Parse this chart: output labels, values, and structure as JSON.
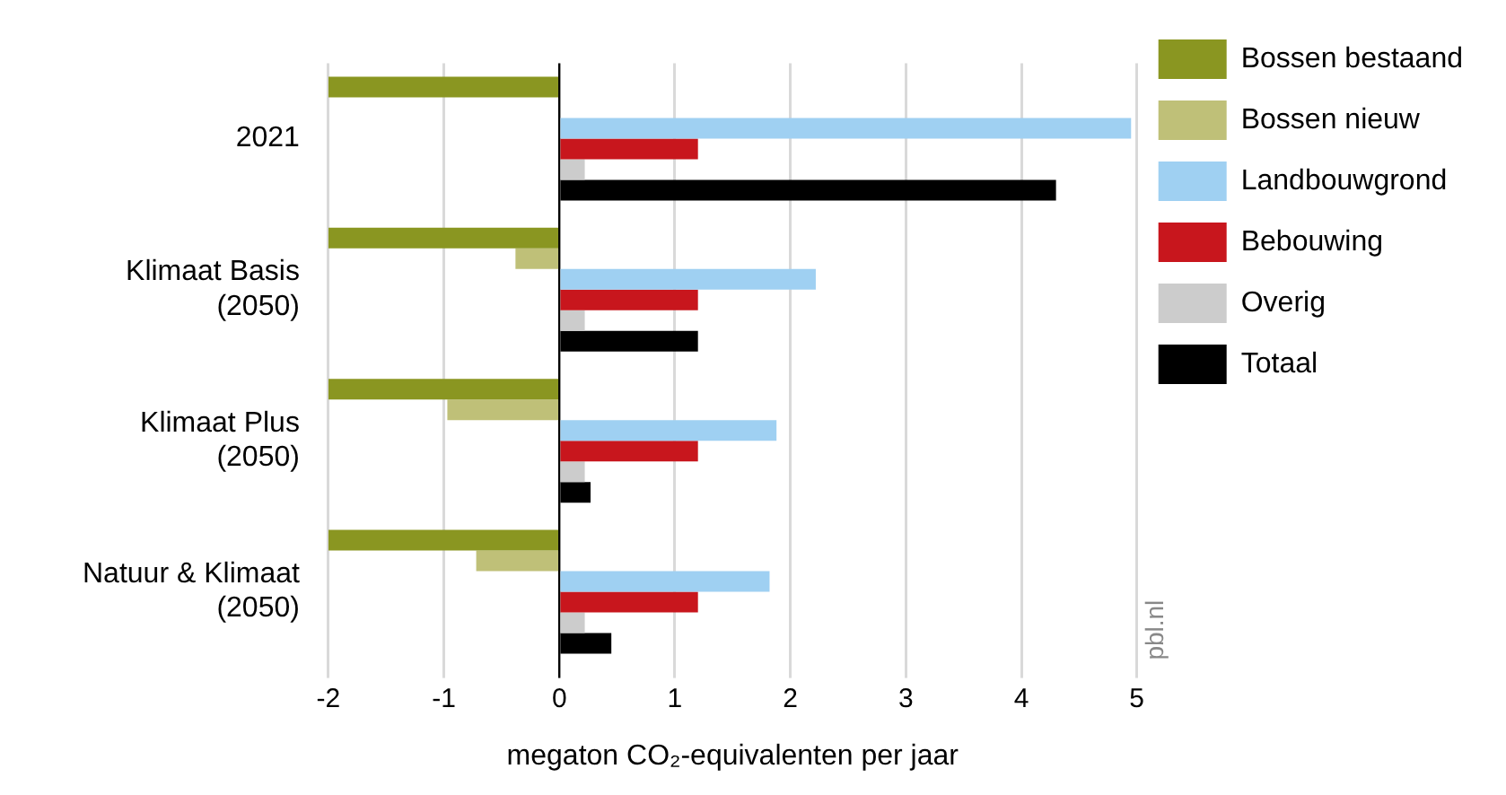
{
  "chart_data": {
    "type": "bar",
    "orientation": "horizontal",
    "xlabel": "megaton CO₂-equivalenten per jaar",
    "categories": [
      "2021",
      "Klimaat Basis (2050)",
      "Klimaat Plus (2050)",
      "Natuur & Klimaat (2050)"
    ],
    "series": [
      {
        "name": "Bossen bestaand",
        "color": "#8a9621",
        "values": [
          -2,
          -2,
          -2,
          -2
        ]
      },
      {
        "name": "Bossen nieuw",
        "color": "#bfc078",
        "values": [
          0,
          -0.38,
          -0.97,
          -0.72
        ]
      },
      {
        "name": "Landbouwgrond",
        "color": "#9fd0f2",
        "values": [
          4.95,
          2.22,
          1.88,
          1.82
        ]
      },
      {
        "name": "Bebouwing",
        "color": "#c8161d",
        "values": [
          1.2,
          1.2,
          1.2,
          1.2
        ]
      },
      {
        "name": "Overig",
        "color": "#cccccc",
        "values": [
          0.22,
          0.22,
          0.22,
          0.22
        ]
      },
      {
        "name": "Totaal",
        "color": "#000000",
        "values": [
          4.3,
          1.2,
          0.27,
          0.45
        ]
      }
    ],
    "xlim": [
      -2,
      5
    ],
    "xticks": [
      -2,
      -1,
      0,
      1,
      2,
      3,
      4,
      5
    ],
    "grid": "x",
    "legend": "right",
    "annotations": [
      "pbl.nl"
    ]
  }
}
